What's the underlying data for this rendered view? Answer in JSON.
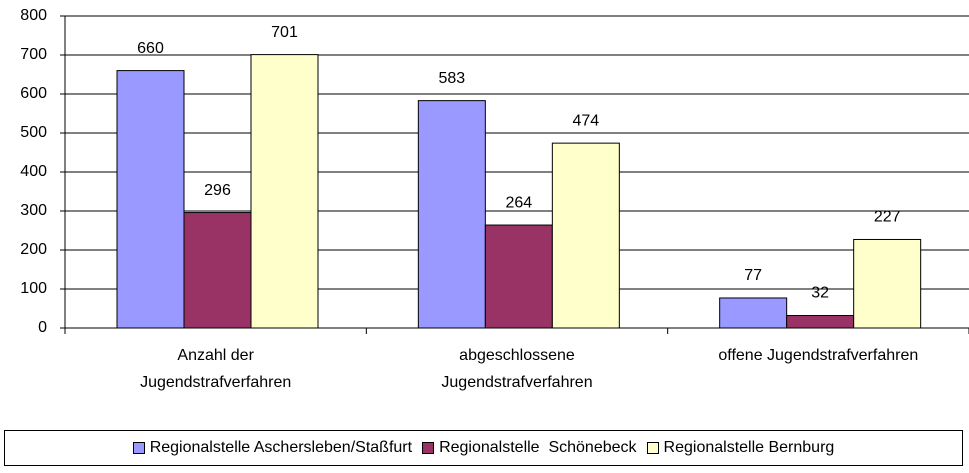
{
  "chart_data": {
    "type": "bar",
    "categories": [
      "Anzahl der\nJugendstrafverfahren",
      "abgeschlossene\nJugendstrafverfahren",
      "offene Jugendstrafverfahren"
    ],
    "series": [
      {
        "name": "Regionalstelle Aschersleben/Staßfurt",
        "color": "#9999ff",
        "values": [
          660,
          583,
          77
        ]
      },
      {
        "name": "Regionalstelle  Schönebeck",
        "color": "#993366",
        "values": [
          296,
          264,
          32
        ]
      },
      {
        "name": "Regionalstelle Bernburg",
        "color": "#ffffcc",
        "values": [
          701,
          474,
          227
        ]
      }
    ],
    "ylim": [
      0,
      800
    ],
    "yticks": [
      0,
      100,
      200,
      300,
      400,
      500,
      600,
      700,
      800
    ],
    "grid": true,
    "legend": "bottom"
  }
}
